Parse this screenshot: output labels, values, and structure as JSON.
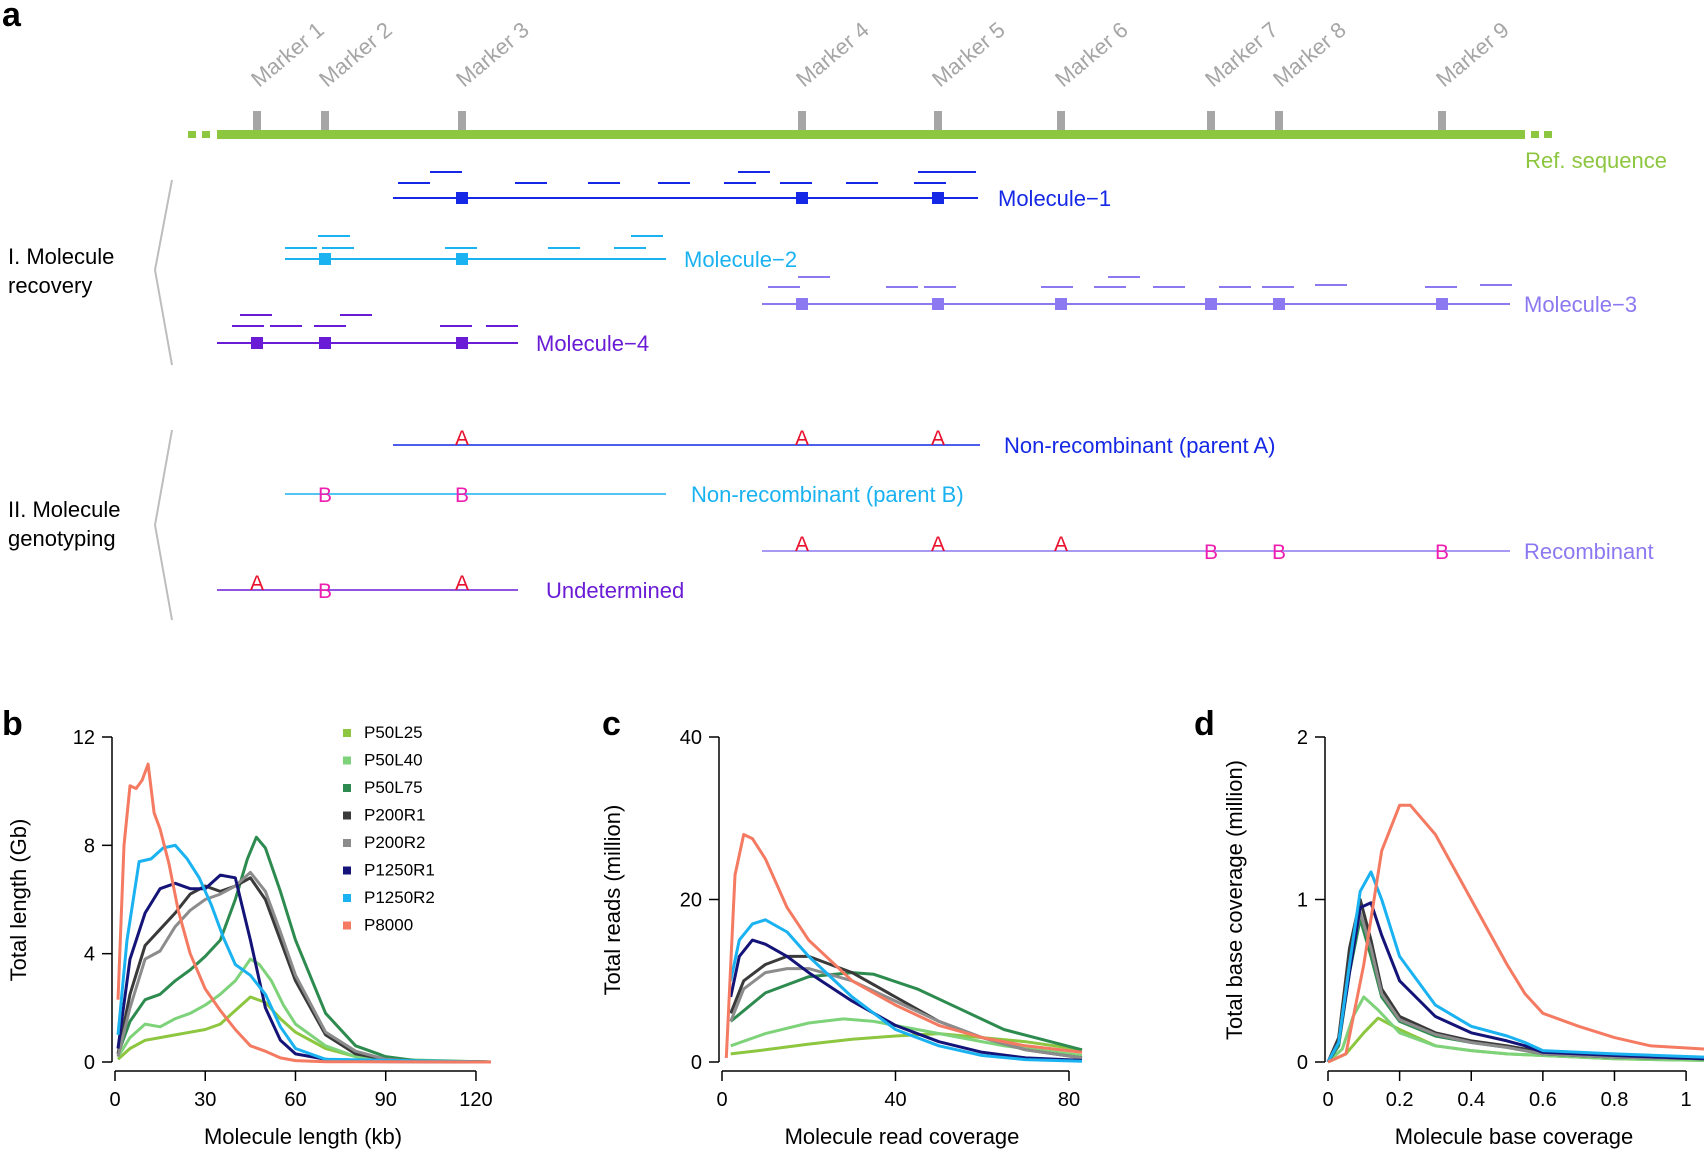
{
  "panel_a": {
    "letter": "a",
    "markers": [
      "Marker 1",
      "Marker 2",
      "Marker 3",
      "Marker 4",
      "Marker 5",
      "Marker 6",
      "Marker 7",
      "Marker 8",
      "Marker 9"
    ],
    "ref_label": "Ref. sequence",
    "ref_color": "#8dc63f",
    "marker_color": "#a6a6a6",
    "section1": [
      "I. Molecule",
      "recovery"
    ],
    "section2": [
      "II. Molecule",
      "genotyping"
    ],
    "molecules": [
      {
        "label": "Molecule−1",
        "color": "#1428e6",
        "markers": [
          3,
          4,
          5
        ]
      },
      {
        "label": "Molecule−2",
        "color": "#1ab2f0",
        "markers": [
          2,
          3
        ]
      },
      {
        "label": "Molecule−3",
        "color": "#8c78f0",
        "markers": [
          4,
          5,
          6,
          7,
          8,
          9
        ]
      },
      {
        "label": "Molecule−4",
        "color": "#6a1bd6",
        "markers": [
          1,
          2,
          3
        ]
      }
    ],
    "genotypes": [
      {
        "label": "Non-recombinant (parent A)",
        "color": "#1428e6",
        "calls": [
          "A",
          "A",
          "A"
        ]
      },
      {
        "label": "Non-recombinant (parent B)",
        "color": "#1ab2f0",
        "calls": [
          "B",
          "B"
        ]
      },
      {
        "label": "Recombinant",
        "color": "#8c78f0",
        "calls": [
          "A",
          "A",
          "A",
          "B",
          "B",
          "B"
        ]
      },
      {
        "label": "Undetermined",
        "color": "#6a1bd6",
        "calls": [
          "A",
          "B",
          "A"
        ]
      }
    ],
    "call_colors": {
      "A": "#e8112d",
      "B": "#ee1fb0"
    }
  },
  "chart_data": [
    {
      "letter": "b",
      "type": "line",
      "xlabel": "Molecule length (kb)",
      "ylabel": "Total length (Gb)",
      "xlim": [
        0,
        125
      ],
      "ylim": [
        0,
        12
      ],
      "xticks": [
        "0",
        "30",
        "60",
        "90",
        "120"
      ],
      "yticks": [
        "0",
        "4",
        "8",
        "12"
      ],
      "legend": [
        "P50L25",
        "P50L40",
        "P50L75",
        "P200R1",
        "P200R2",
        "P1250R1",
        "P1250R2",
        "P8000"
      ],
      "series": [
        {
          "name": "P50L25",
          "color": "#8dc63f",
          "x": [
            1,
            5,
            10,
            15,
            20,
            25,
            30,
            35,
            40,
            45,
            50,
            55,
            60,
            70,
            80,
            90,
            100,
            125
          ],
          "values": [
            0.1,
            0.5,
            0.8,
            0.9,
            1.0,
            1.1,
            1.2,
            1.4,
            1.9,
            2.4,
            2.2,
            1.6,
            1.1,
            0.5,
            0.2,
            0.1,
            0.05,
            0
          ]
        },
        {
          "name": "P50L40",
          "color": "#7ed37a",
          "x": [
            1,
            5,
            10,
            15,
            20,
            25,
            30,
            35,
            40,
            45,
            48,
            52,
            56,
            60,
            70,
            80,
            90,
            125
          ],
          "values": [
            0.2,
            0.9,
            1.4,
            1.3,
            1.6,
            1.8,
            2.1,
            2.5,
            3.0,
            3.8,
            3.6,
            3.0,
            2.1,
            1.4,
            0.6,
            0.2,
            0.1,
            0
          ]
        },
        {
          "name": "P50L75",
          "color": "#2e8b4f",
          "x": [
            1,
            5,
            10,
            15,
            20,
            25,
            30,
            35,
            40,
            44,
            47,
            50,
            55,
            60,
            70,
            80,
            90,
            100,
            125
          ],
          "values": [
            0.3,
            1.5,
            2.3,
            2.5,
            3.0,
            3.4,
            3.9,
            4.5,
            6.0,
            7.5,
            8.3,
            7.9,
            6.3,
            4.5,
            1.8,
            0.6,
            0.2,
            0.05,
            0
          ]
        },
        {
          "name": "P200R1",
          "color": "#3a3a3a",
          "x": [
            1,
            5,
            10,
            15,
            20,
            25,
            30,
            35,
            40,
            45,
            50,
            55,
            60,
            70,
            80,
            90,
            100,
            125
          ],
          "values": [
            0.3,
            2.5,
            4.3,
            4.9,
            5.5,
            6.2,
            6.5,
            6.3,
            6.5,
            6.8,
            6.0,
            4.5,
            3.0,
            1.0,
            0.3,
            0.1,
            0.03,
            0
          ]
        },
        {
          "name": "P200R2",
          "color": "#8c8c8c",
          "x": [
            1,
            5,
            10,
            15,
            20,
            25,
            30,
            35,
            40,
            45,
            50,
            55,
            60,
            70,
            80,
            90,
            100,
            125
          ],
          "values": [
            0.2,
            2.0,
            3.8,
            4.1,
            5.0,
            5.6,
            6.0,
            6.2,
            6.5,
            7.0,
            6.3,
            4.8,
            3.2,
            1.1,
            0.4,
            0.1,
            0.03,
            0
          ]
        },
        {
          "name": "P1250R1",
          "color": "#141478",
          "x": [
            1,
            5,
            10,
            15,
            20,
            25,
            30,
            35,
            40,
            45,
            50,
            55,
            60,
            70,
            80,
            125
          ],
          "values": [
            0.5,
            3.8,
            5.5,
            6.4,
            6.6,
            6.4,
            6.4,
            6.9,
            6.8,
            4.5,
            2.0,
            0.8,
            0.3,
            0.1,
            0.02,
            0
          ]
        },
        {
          "name": "P1250R2",
          "color": "#1ab2f0",
          "x": [
            1,
            4,
            8,
            12,
            16,
            20,
            24,
            28,
            32,
            36,
            40,
            45,
            50,
            55,
            60,
            70,
            125
          ],
          "values": [
            1.0,
            4.5,
            7.4,
            7.5,
            7.9,
            8.0,
            7.5,
            6.8,
            5.8,
            4.6,
            3.6,
            3.2,
            2.5,
            1.3,
            0.5,
            0.1,
            0
          ]
        },
        {
          "name": "P8000",
          "color": "#f47a62",
          "x": [
            1,
            3,
            5,
            7,
            9,
            11,
            13,
            15,
            18,
            21,
            25,
            30,
            35,
            40,
            45,
            50,
            55,
            60,
            70,
            125
          ],
          "values": [
            2.3,
            8.0,
            10.2,
            10.1,
            10.4,
            11.0,
            9.2,
            8.6,
            7.3,
            5.6,
            4.0,
            2.7,
            1.9,
            1.2,
            0.6,
            0.4,
            0.15,
            0.05,
            0.01,
            0
          ]
        }
      ]
    },
    {
      "letter": "c",
      "type": "line",
      "xlabel": "Molecule read coverage",
      "ylabel": "Total reads (million)",
      "xlim": [
        0,
        83
      ],
      "ylim": [
        0,
        40
      ],
      "xticks": [
        "0",
        "40",
        "80"
      ],
      "yticks": [
        "0",
        "20",
        "40"
      ],
      "series": [
        {
          "name": "P50L25",
          "color": "#8dc63f",
          "x": [
            2,
            10,
            20,
            30,
            40,
            50,
            60,
            70,
            83
          ],
          "values": [
            1,
            1.5,
            2.2,
            2.8,
            3.2,
            3.5,
            3.0,
            2.5,
            1.5
          ]
        },
        {
          "name": "P50L40",
          "color": "#7ed37a",
          "x": [
            2,
            10,
            20,
            28,
            35,
            45,
            55,
            65,
            83
          ],
          "values": [
            2,
            3.5,
            4.8,
            5.3,
            5.0,
            4.0,
            3.0,
            2.0,
            0.8
          ]
        },
        {
          "name": "P50L75",
          "color": "#2e8b4f",
          "x": [
            2,
            10,
            20,
            30,
            35,
            45,
            55,
            65,
            83
          ],
          "values": [
            5,
            8.5,
            10.5,
            11.0,
            10.8,
            9.0,
            6.5,
            4.0,
            1.5
          ]
        },
        {
          "name": "P200R1",
          "color": "#3a3a3a",
          "x": [
            2,
            5,
            10,
            15,
            20,
            30,
            40,
            50,
            60,
            70,
            83
          ],
          "values": [
            6,
            10,
            12,
            13,
            13,
            11,
            8,
            5,
            3,
            1.5,
            0.5
          ]
        },
        {
          "name": "P200R2",
          "color": "#8c8c8c",
          "x": [
            2,
            5,
            10,
            15,
            20,
            30,
            40,
            50,
            60,
            70,
            83
          ],
          "values": [
            5,
            9,
            11,
            11.5,
            11.5,
            10,
            7.5,
            5,
            3,
            1.5,
            0.5
          ]
        },
        {
          "name": "P1250R1",
          "color": "#141478",
          "x": [
            2,
            4,
            7,
            10,
            15,
            20,
            30,
            40,
            50,
            60,
            70,
            83
          ],
          "values": [
            8,
            13,
            15,
            14.5,
            13,
            11,
            7.5,
            4.5,
            2.5,
            1.2,
            0.5,
            0.2
          ]
        },
        {
          "name": "P1250R2",
          "color": "#1ab2f0",
          "x": [
            2,
            4,
            7,
            10,
            15,
            20,
            30,
            40,
            50,
            60,
            70,
            83
          ],
          "values": [
            10,
            15,
            17,
            17.5,
            16,
            13,
            8,
            4,
            2,
            0.8,
            0.3,
            0.1
          ]
        },
        {
          "name": "P8000",
          "color": "#f47a62",
          "x": [
            1,
            3,
            5,
            7,
            10,
            15,
            20,
            30,
            40,
            50,
            60,
            70,
            83
          ],
          "values": [
            0.5,
            23,
            28,
            27.5,
            25,
            19,
            15,
            10,
            7,
            4.5,
            3,
            2,
            1.2
          ]
        }
      ]
    },
    {
      "letter": "d",
      "type": "line",
      "xlabel": "Molecule base coverage",
      "ylabel": "Total base coverage (million)",
      "xlim": [
        0,
        1.05
      ],
      "ylim": [
        0,
        2
      ],
      "xticks": [
        "0",
        "0.2",
        "0.4",
        "0.6",
        "0.8",
        "1"
      ],
      "yticks": [
        "0",
        "1",
        "2"
      ],
      "series": [
        {
          "name": "P50L25",
          "color": "#8dc63f",
          "x": [
            0,
            0.05,
            0.1,
            0.14,
            0.2,
            0.3,
            0.4,
            0.5,
            0.6,
            0.8,
            1.05
          ],
          "values": [
            0,
            0.05,
            0.18,
            0.27,
            0.2,
            0.1,
            0.07,
            0.05,
            0.04,
            0.02,
            0.01
          ]
        },
        {
          "name": "P50L40",
          "color": "#7ed37a",
          "x": [
            0,
            0.04,
            0.07,
            0.1,
            0.14,
            0.2,
            0.3,
            0.4,
            0.5,
            0.6,
            0.8,
            1.05
          ],
          "values": [
            0,
            0.08,
            0.28,
            0.4,
            0.32,
            0.18,
            0.1,
            0.07,
            0.05,
            0.04,
            0.02,
            0.01
          ]
        },
        {
          "name": "P50L75",
          "color": "#2e8b4f",
          "x": [
            0,
            0.03,
            0.06,
            0.09,
            0.12,
            0.15,
            0.2,
            0.3,
            0.4,
            0.5,
            0.55,
            0.6,
            0.8,
            1.05
          ],
          "values": [
            0,
            0.1,
            0.55,
            0.88,
            0.65,
            0.4,
            0.25,
            0.16,
            0.12,
            0.09,
            0.07,
            0.05,
            0.03,
            0.02
          ]
        },
        {
          "name": "P200R1",
          "color": "#3a3a3a",
          "x": [
            0,
            0.03,
            0.06,
            0.09,
            0.12,
            0.15,
            0.2,
            0.3,
            0.4,
            0.5,
            0.55,
            0.6,
            0.8,
            1.05
          ],
          "values": [
            0,
            0.15,
            0.7,
            1.0,
            0.75,
            0.45,
            0.28,
            0.18,
            0.13,
            0.1,
            0.08,
            0.05,
            0.03,
            0.02
          ]
        },
        {
          "name": "P200R2",
          "color": "#8c8c8c",
          "x": [
            0,
            0.03,
            0.06,
            0.09,
            0.12,
            0.15,
            0.2,
            0.3,
            0.4,
            0.5,
            0.55,
            0.6,
            0.8,
            1.05
          ],
          "values": [
            0,
            0.12,
            0.6,
            0.92,
            0.7,
            0.42,
            0.26,
            0.17,
            0.12,
            0.09,
            0.07,
            0.05,
            0.03,
            0.02
          ]
        },
        {
          "name": "P1250R1",
          "color": "#141478",
          "x": [
            0,
            0.03,
            0.06,
            0.09,
            0.12,
            0.15,
            0.2,
            0.3,
            0.4,
            0.5,
            0.55,
            0.6,
            0.8,
            1.05
          ],
          "values": [
            0,
            0.12,
            0.55,
            0.95,
            0.98,
            0.78,
            0.5,
            0.28,
            0.18,
            0.13,
            0.1,
            0.06,
            0.04,
            0.02
          ]
        },
        {
          "name": "P1250R2",
          "color": "#1ab2f0",
          "x": [
            0,
            0.03,
            0.06,
            0.09,
            0.12,
            0.15,
            0.2,
            0.3,
            0.4,
            0.5,
            0.55,
            0.6,
            0.8,
            1.05
          ],
          "values": [
            0,
            0.12,
            0.6,
            1.05,
            1.17,
            1.0,
            0.65,
            0.35,
            0.22,
            0.16,
            0.12,
            0.07,
            0.05,
            0.03
          ]
        },
        {
          "name": "P8000",
          "color": "#f47a62",
          "x": [
            0,
            0.05,
            0.1,
            0.15,
            0.2,
            0.23,
            0.3,
            0.4,
            0.5,
            0.55,
            0.6,
            0.7,
            0.8,
            0.9,
            1.05
          ],
          "values": [
            0,
            0.05,
            0.6,
            1.3,
            1.58,
            1.58,
            1.4,
            1.0,
            0.6,
            0.42,
            0.3,
            0.22,
            0.15,
            0.1,
            0.08
          ]
        }
      ]
    }
  ]
}
